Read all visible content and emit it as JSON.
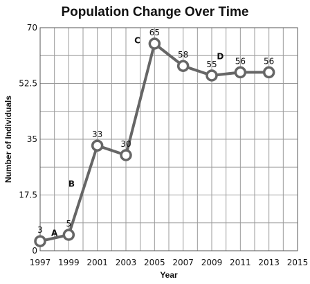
{
  "chart_data": {
    "type": "line",
    "title": "Population Change Over Time",
    "xlabel": "Year",
    "ylabel": "Number of Individuals",
    "xlim": [
      1997,
      2015
    ],
    "ylim": [
      0,
      70
    ],
    "x_ticks": [
      "1997",
      "1999",
      "2001",
      "2003",
      "2005",
      "2007",
      "2009",
      "2011",
      "2013",
      "2015"
    ],
    "y_ticks": [
      "0",
      "17.5",
      "35",
      "52.5",
      "70"
    ],
    "grid": true,
    "series": [
      {
        "x": [
          1997,
          1999,
          2001,
          2003,
          2005,
          2007,
          2009,
          2011,
          2013
        ],
        "values": [
          3,
          5,
          33,
          30,
          65,
          58,
          55,
          56,
          56
        ],
        "labels": [
          "3",
          "5",
          "33",
          "30",
          "65",
          "58",
          "55",
          "56",
          "56"
        ]
      }
    ],
    "annotations": [
      {
        "text": "A",
        "x": 1998,
        "y": 5.5
      },
      {
        "text": "B",
        "x": 1999.2,
        "y": 21
      },
      {
        "text": "C",
        "x": 2003.8,
        "y": 66
      },
      {
        "text": "D",
        "x": 2009.6,
        "y": 61
      }
    ]
  }
}
